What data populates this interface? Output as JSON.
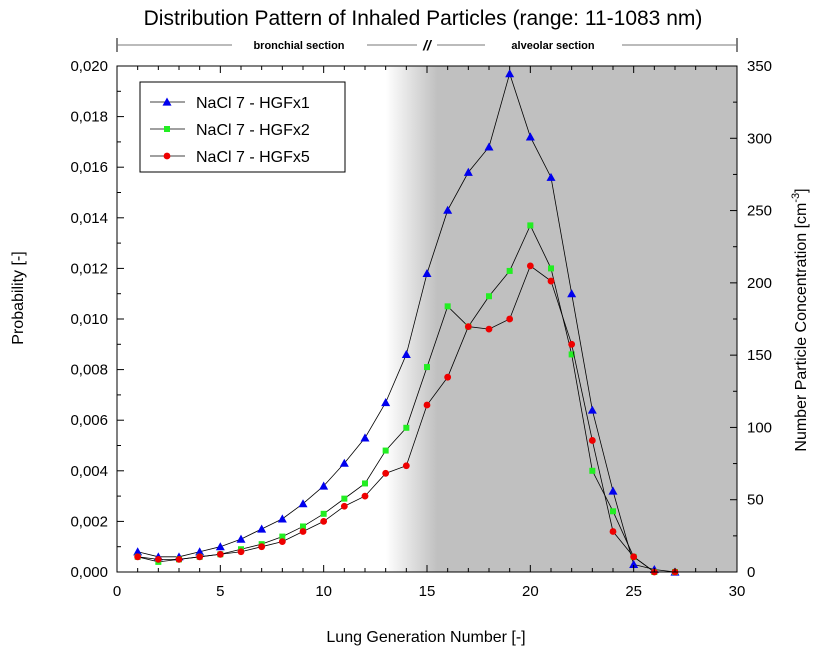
{
  "chart_data": {
    "type": "line",
    "title": "Distribution Pattern of Inhaled Particles (range: 11-1083 nm)",
    "xlabel": "Lung Generation Number [-]",
    "ylabel": "Probability [-]",
    "ylabel_right_main": "Number Particle Concentration [cm",
    "ylabel_right_sup": "-3",
    "ylabel_right_close": "]",
    "xlim": [
      0,
      30
    ],
    "ylim": [
      0,
      0.02
    ],
    "ylim_right": [
      0,
      350
    ],
    "x_ticks": [
      0,
      5,
      10,
      15,
      20,
      25,
      30
    ],
    "x_tick_labels": [
      "0",
      "5",
      "10",
      "15",
      "20",
      "25",
      "30"
    ],
    "y_ticks": [
      0,
      0.002,
      0.004,
      0.006,
      0.008,
      0.01,
      0.012,
      0.014,
      0.016,
      0.018,
      0.02
    ],
    "y_tick_labels": [
      "0,000",
      "0,002",
      "0,004",
      "0,006",
      "0,008",
      "0,010",
      "0,012",
      "0,014",
      "0,016",
      "0,018",
      "0,020"
    ],
    "y_right_ticks": [
      0,
      50,
      100,
      150,
      200,
      250,
      300,
      350
    ],
    "y_right_tick_labels": [
      "0",
      "50",
      "100",
      "150",
      "200",
      "250",
      "300",
      "350"
    ],
    "sections": {
      "bronchial_label": "bronchial section",
      "alveolar_label": "alveolar section",
      "break_symbol": "//",
      "start_x": 0,
      "break_x": 15,
      "end_x": 30
    },
    "shading": {
      "gradient_from_x": 13,
      "gradient_to_x": 15.5,
      "color": "#c0c0c0"
    },
    "legend_position": "top-left",
    "grid": false,
    "x": [
      1,
      2,
      3,
      4,
      5,
      6,
      7,
      8,
      9,
      10,
      11,
      12,
      13,
      14,
      15,
      16,
      17,
      18,
      19,
      20,
      21,
      22,
      23,
      24,
      25,
      26,
      27
    ],
    "series": [
      {
        "name": "NaCl 7 - HGFx1",
        "marker": "triangle",
        "color": "#0000ee",
        "values": [
          0.0008,
          0.0006,
          0.0006,
          0.0008,
          0.001,
          0.0013,
          0.0017,
          0.0021,
          0.0027,
          0.0034,
          0.0043,
          0.0053,
          0.0067,
          0.0086,
          0.0118,
          0.0143,
          0.0158,
          0.0168,
          0.0197,
          0.0172,
          0.0156,
          0.011,
          0.0064,
          0.0032,
          0.0003,
          0.0001,
          0.0
        ]
      },
      {
        "name": "NaCl 7 - HGFx2",
        "marker": "square",
        "color": "#22ee22",
        "values": [
          0.0006,
          0.0004,
          0.0005,
          0.0006,
          0.0007,
          0.0009,
          0.0011,
          0.0014,
          0.0018,
          0.0023,
          0.0029,
          0.0035,
          0.0048,
          0.0057,
          0.0081,
          0.0105,
          0.0097,
          0.0109,
          0.0119,
          0.0137,
          0.012,
          0.0086,
          0.004,
          0.0024,
          0.0006,
          0.0,
          0.0
        ]
      },
      {
        "name": "NaCl 7 - HGFx5",
        "marker": "circle",
        "color": "#ee0000",
        "values": [
          0.0006,
          0.0005,
          0.0005,
          0.0006,
          0.0007,
          0.0008,
          0.001,
          0.0012,
          0.0016,
          0.002,
          0.0026,
          0.003,
          0.0039,
          0.0042,
          0.0066,
          0.0077,
          0.0097,
          0.0096,
          0.01,
          0.0121,
          0.0115,
          0.009,
          0.0052,
          0.0016,
          0.0006,
          0.0,
          0.0
        ]
      }
    ]
  }
}
